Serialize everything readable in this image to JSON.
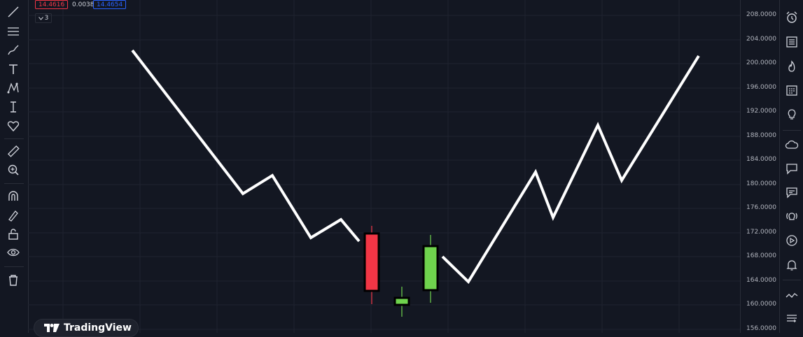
{
  "header": {
    "bid_value": "14.4616",
    "spread_value": "0.0038",
    "ask_value": "14.4654",
    "indicators_count": "3"
  },
  "price_axis": {
    "ticks": [
      "208.0000",
      "204.0000",
      "200.0000",
      "196.0000",
      "192.0000",
      "188.0000",
      "184.0000",
      "180.0000",
      "176.0000",
      "172.0000",
      "168.0000",
      "164.0000",
      "160.0000",
      "156.0000"
    ]
  },
  "watermark": {
    "brand": "TradingView"
  },
  "left_toolbar": {
    "icons": [
      "trend-line-icon",
      "horizontal-lines-icon",
      "brush-icon",
      "text-icon",
      "pattern-icon",
      "measure-position-icon",
      "heart-icon",
      "ruler-icon",
      "zoom-in-icon",
      "magnet-icon",
      "pencil-lock-icon",
      "lock-icon",
      "eye-icon",
      "trash-icon"
    ]
  },
  "right_toolbar": {
    "icons": [
      "alarm-clock-icon",
      "watchlist-icon",
      "hotlist-icon",
      "calendar-icon",
      "idea-bulb-icon",
      "cloud-icon",
      "chat-icon",
      "messages-icon",
      "streams-icon",
      "play-icon",
      "bell-icon",
      "pulse-icon",
      "layers-icon"
    ]
  },
  "colors": {
    "background": "#131722",
    "bearish": "#f23645",
    "bullish": "#6fd34d",
    "line": "#ffffff",
    "ask": "#2962ff"
  }
}
